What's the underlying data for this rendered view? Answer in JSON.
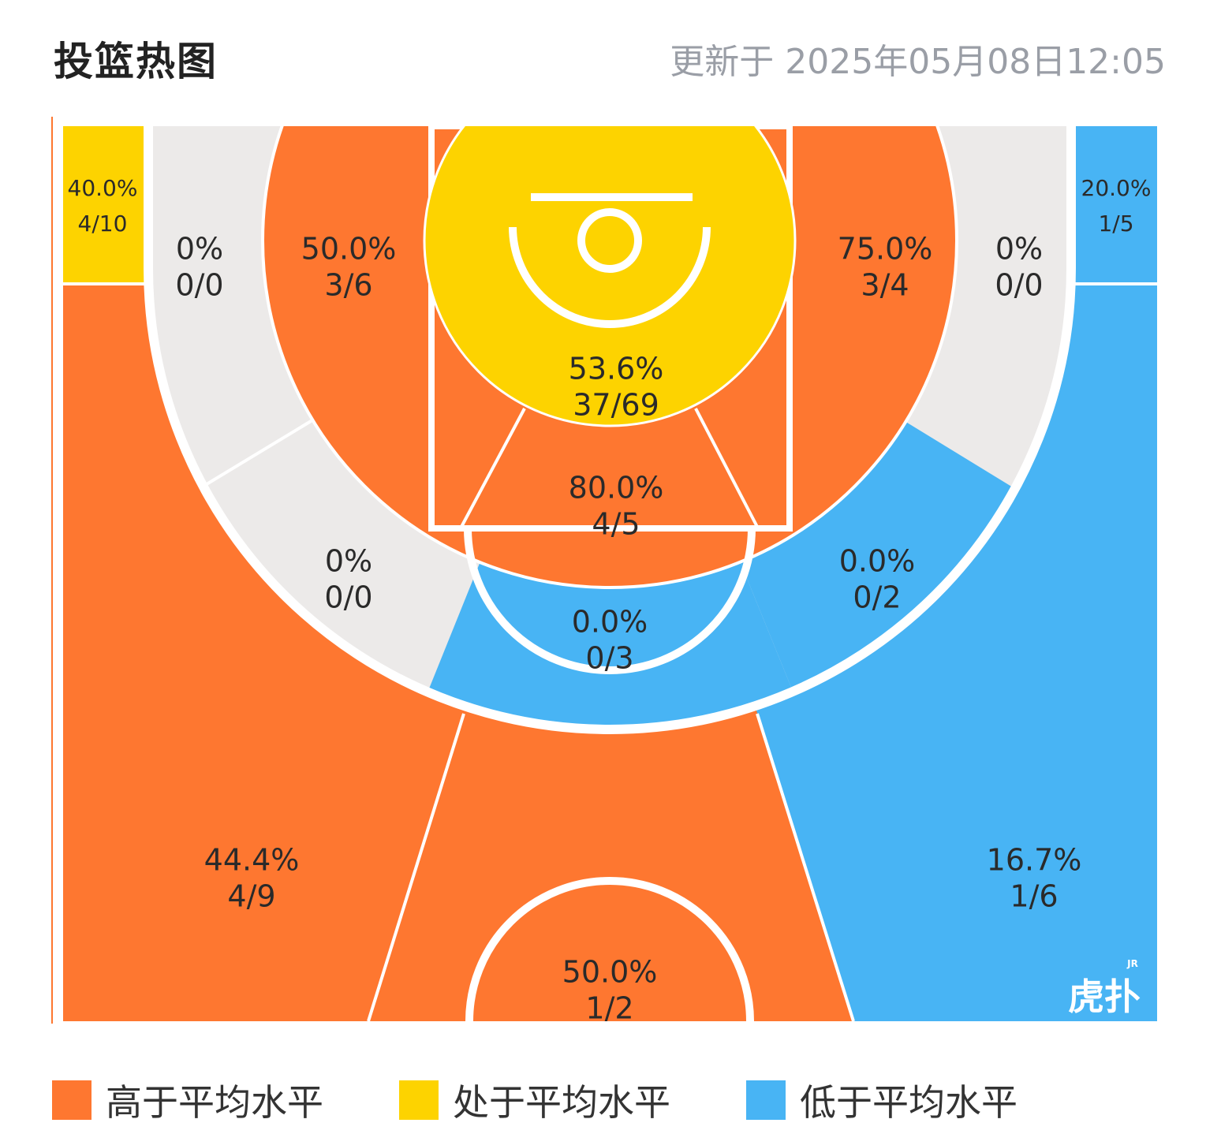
{
  "header": {
    "title": "投篮热图",
    "updated": "更新于 2025年05月08日12:05"
  },
  "colors": {
    "above": "#FE7730",
    "average": "#FDD300",
    "below": "#48B4F4",
    "none": "#ECEAE9"
  },
  "legend": [
    {
      "label": "高于平均水平",
      "level": "above"
    },
    {
      "label": "处于平均水平",
      "level": "average"
    },
    {
      "label": "低于平均水平",
      "level": "below"
    }
  ],
  "logo": {
    "text": "虎扑",
    "sup": "JR"
  },
  "chart_data": {
    "type": "heatmap",
    "title": "投篮热图",
    "zones": [
      {
        "id": "left-corner-3",
        "pct": "40.0%",
        "made_att": "4/10",
        "made": 4,
        "attempts": 10,
        "level": "average"
      },
      {
        "id": "right-corner-3",
        "pct": "20.0%",
        "made_att": "1/5",
        "made": 1,
        "attempts": 5,
        "level": "below"
      },
      {
        "id": "left-baseline-mid",
        "pct": "0%",
        "made_att": "0/0",
        "made": 0,
        "attempts": 0,
        "level": "none"
      },
      {
        "id": "right-baseline-mid",
        "pct": "0%",
        "made_att": "0/0",
        "made": 0,
        "attempts": 0,
        "level": "none"
      },
      {
        "id": "left-short-mid",
        "pct": "50.0%",
        "made_att": "3/6",
        "made": 3,
        "attempts": 6,
        "level": "above"
      },
      {
        "id": "right-short-mid",
        "pct": "75.0%",
        "made_att": "3/4",
        "made": 3,
        "attempts": 4,
        "level": "above"
      },
      {
        "id": "restricted-area",
        "pct": "53.6%",
        "made_att": "37/69",
        "made": 37,
        "attempts": 69,
        "level": "average"
      },
      {
        "id": "paint",
        "pct": "80.0%",
        "made_att": "4/5",
        "made": 4,
        "attempts": 5,
        "level": "above"
      },
      {
        "id": "left-wing-mid",
        "pct": "0%",
        "made_att": "0/0",
        "made": 0,
        "attempts": 0,
        "level": "none"
      },
      {
        "id": "top-mid",
        "pct": "0.0%",
        "made_att": "0/3",
        "made": 0,
        "attempts": 3,
        "level": "below"
      },
      {
        "id": "right-wing-mid",
        "pct": "0.0%",
        "made_att": "0/2",
        "made": 0,
        "attempts": 2,
        "level": "below"
      },
      {
        "id": "left-wing-3",
        "pct": "44.4%",
        "made_att": "4/9",
        "made": 4,
        "attempts": 9,
        "level": "above"
      },
      {
        "id": "right-wing-3",
        "pct": "16.7%",
        "made_att": "1/6",
        "made": 1,
        "attempts": 6,
        "level": "below"
      },
      {
        "id": "top-3",
        "pct": "50.0%",
        "made_att": "1/2",
        "made": 1,
        "attempts": 2,
        "level": "above"
      }
    ]
  }
}
